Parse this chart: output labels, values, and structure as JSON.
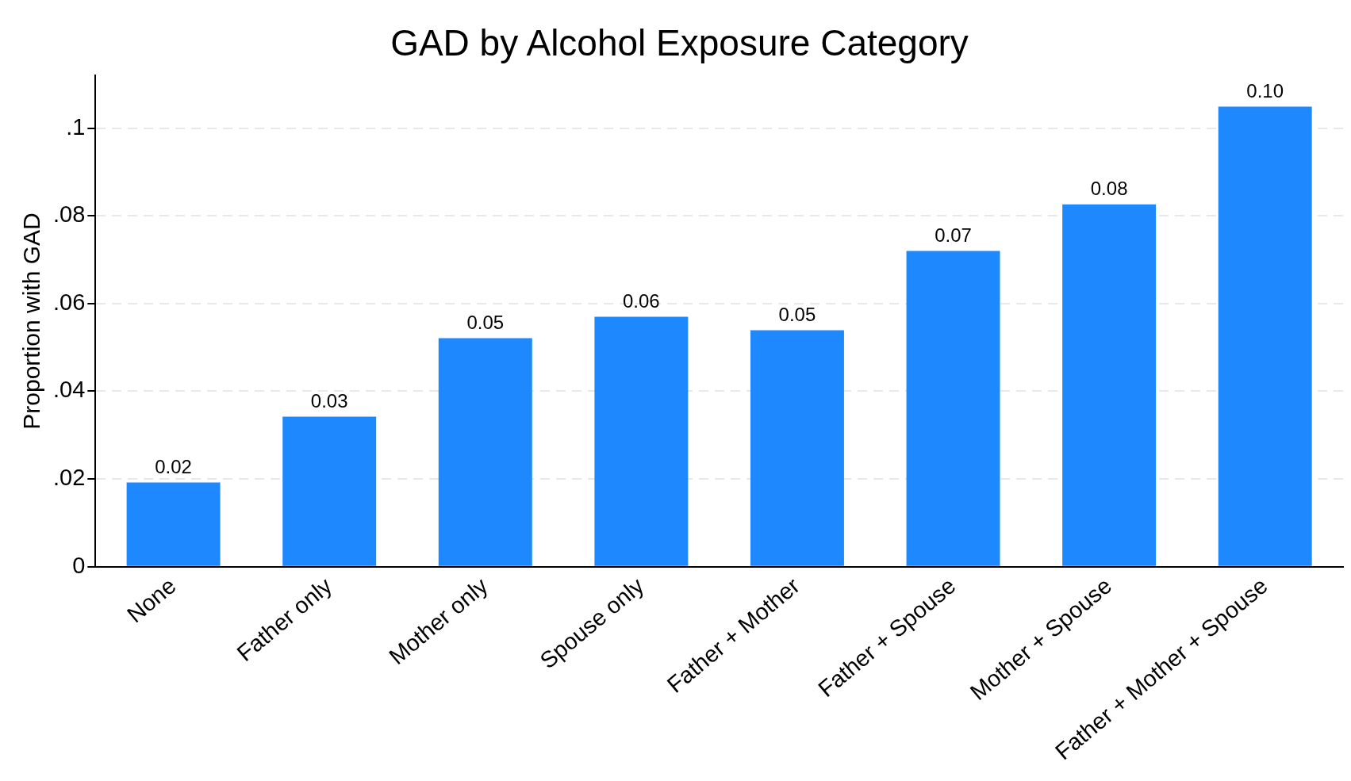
{
  "chart_data": {
    "type": "bar",
    "title": "GAD by Alcohol Exposure Category",
    "ylabel": "Proportion with GAD",
    "categories": [
      "None",
      "Father only",
      "Mother only",
      "Spouse only",
      "Father + Mother",
      "Father + Spouse",
      "Mother + Spouse",
      "Father + Mother + Spouse"
    ],
    "values": [
      0.0192,
      0.0342,
      0.0521,
      0.057,
      0.0539,
      0.072,
      0.0826,
      0.1049
    ],
    "value_labels": [
      "0.02",
      "0.03",
      "0.05",
      "0.06",
      "0.05",
      "0.07",
      "0.08",
      "0.10"
    ],
    "color": "#1e88ff",
    "ylim": [
      0,
      0.112
    ],
    "yticks": [
      0,
      {
        "value": 0.02,
        "label": ".02"
      },
      {
        "value": 0.04,
        "label": ".04"
      },
      {
        "value": 0.06,
        "label": ".06"
      },
      {
        "value": 0.08,
        "label": ".08"
      },
      {
        "value": 0.1,
        "label": ".1"
      }
    ],
    "grid": "y"
  }
}
